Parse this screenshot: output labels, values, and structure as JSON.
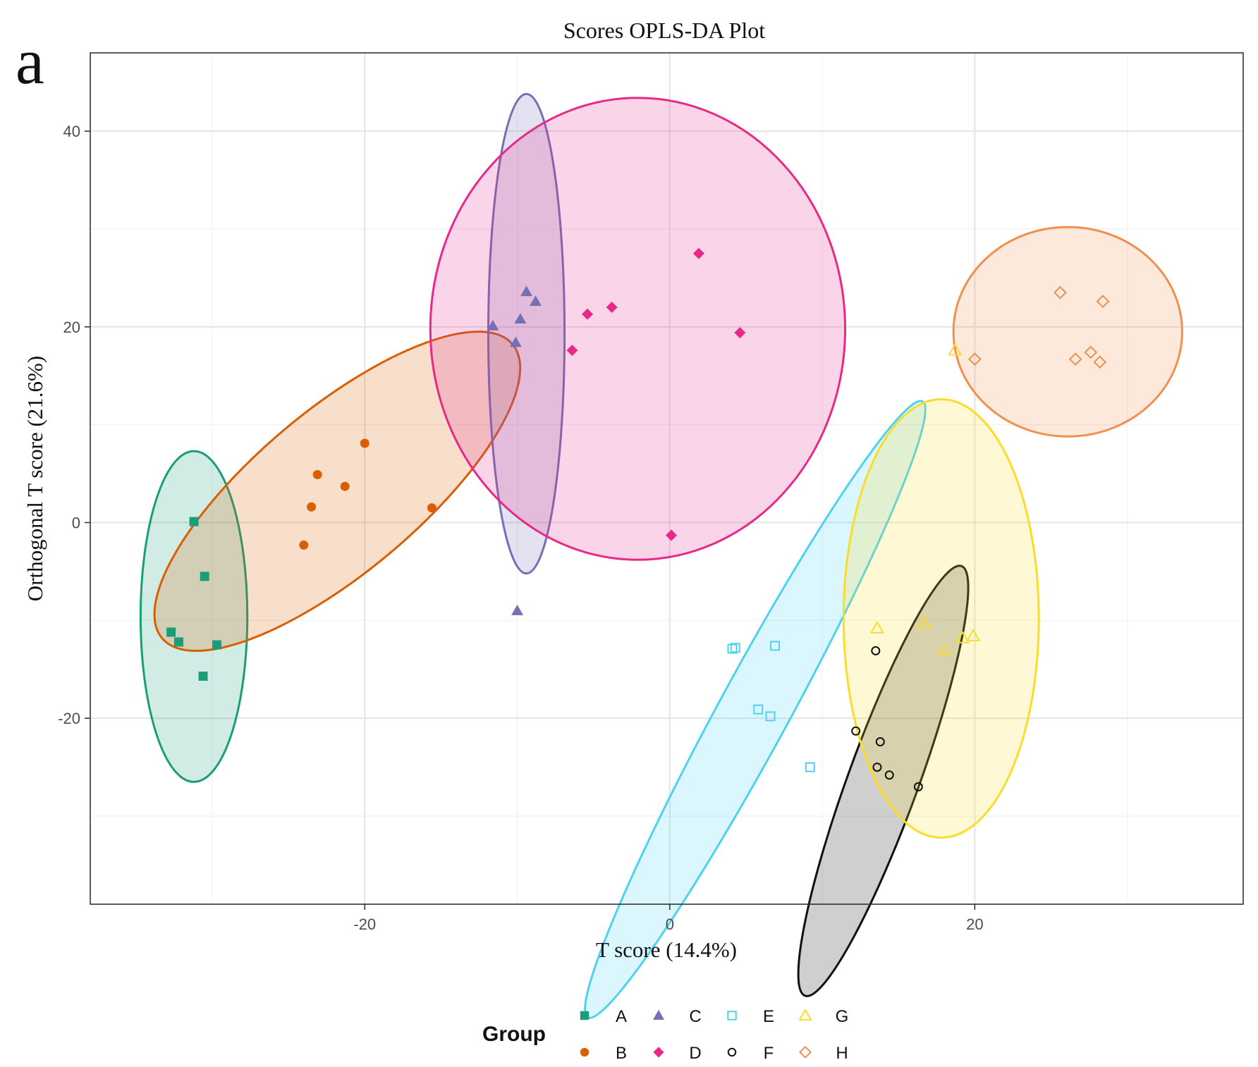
{
  "panel_label": "a",
  "chart_data": {
    "type": "scatter",
    "title": "Scores OPLS-DA Plot",
    "xlabel": "T score (14.4%)",
    "ylabel": "Orthogonal T score (21.6%)",
    "xlim": [
      -38,
      37.6
    ],
    "ylim": [
      -39,
      48
    ],
    "x_ticks": [
      -20,
      0,
      20
    ],
    "y_ticks": [
      -20,
      0,
      20,
      40
    ],
    "x_tick_labels": [
      "-20",
      "0",
      "20"
    ],
    "y_tick_labels": [
      "-20",
      "0",
      "20",
      "40"
    ],
    "x_minor_grid": [
      -30,
      -10,
      10,
      30
    ],
    "y_minor_grid": [
      -30,
      -10,
      10,
      30
    ],
    "grid": true,
    "legend_title": "Group",
    "legend_position": "bottom",
    "series": [
      {
        "name": "A",
        "marker": "filled-square",
        "color": "#1b9e77",
        "ellipse": {
          "cx": -31.2,
          "cy": -9.6,
          "rx": 3.5,
          "ry": 16.9,
          "angle": 0
        },
        "points": [
          [
            -31.2,
            0.1
          ],
          [
            -30.5,
            -5.5
          ],
          [
            -32.7,
            -11.2
          ],
          [
            -32.2,
            -12.2
          ],
          [
            -29.7,
            -12.5
          ],
          [
            -30.6,
            -15.7
          ]
        ]
      },
      {
        "name": "B",
        "marker": "filled-circle",
        "color": "#d95f02",
        "ellipse": {
          "cx": -21.8,
          "cy": 3.2,
          "rx": 15.0,
          "ry": 8.3,
          "angle": 40
        },
        "points": [
          [
            -20.0,
            8.1
          ],
          [
            -23.1,
            4.9
          ],
          [
            -21.3,
            3.7
          ],
          [
            -23.5,
            1.6
          ],
          [
            -15.6,
            1.5
          ],
          [
            -24.0,
            -2.3
          ]
        ]
      },
      {
        "name": "C",
        "marker": "filled-triangle",
        "color": "#7570b3",
        "ellipse": {
          "cx": -9.4,
          "cy": 19.3,
          "rx": 2.5,
          "ry": 24.5,
          "angle": 0
        },
        "points": [
          [
            -9.4,
            23.6
          ],
          [
            -8.8,
            22.6
          ],
          [
            -11.6,
            20.1
          ],
          [
            -9.8,
            20.8
          ],
          [
            -10.1,
            18.4
          ],
          [
            -10.0,
            -9.0
          ]
        ]
      },
      {
        "name": "D",
        "marker": "filled-diamond",
        "color": "#e7298a",
        "ellipse": {
          "cx": -2.1,
          "cy": 19.8,
          "rx": 13.6,
          "ry": 23.6,
          "angle": 0
        },
        "points": [
          [
            1.9,
            27.5
          ],
          [
            -5.4,
            21.3
          ],
          [
            -3.8,
            22.0
          ],
          [
            4.6,
            19.4
          ],
          [
            -6.4,
            17.6
          ],
          [
            0.1,
            -1.3
          ]
        ]
      },
      {
        "name": "E",
        "marker": "open-square",
        "color": "#4dd3f0",
        "ellipse": {
          "cx": 5.6,
          "cy": -19.1,
          "rx": 23.0,
          "ry": 3.6,
          "angle": 61.5
        },
        "points": [
          [
            4.3,
            -12.8
          ],
          [
            4.1,
            -12.9
          ],
          [
            6.9,
            -12.6
          ],
          [
            5.8,
            -19.1
          ],
          [
            6.6,
            -19.8
          ],
          [
            9.2,
            -25.0
          ]
        ]
      },
      {
        "name": "F",
        "marker": "open-circle",
        "color": "#111111",
        "ellipse": {
          "cx": 14.0,
          "cy": -26.4,
          "rx": 15.0,
          "ry": 3.6,
          "angle": 70
        },
        "points": [
          [
            13.5,
            -13.1
          ],
          [
            12.2,
            -21.3
          ],
          [
            13.8,
            -22.4
          ],
          [
            13.6,
            -25.0
          ],
          [
            14.4,
            -25.8
          ],
          [
            16.3,
            -27.0
          ]
        ]
      },
      {
        "name": "G",
        "marker": "open-triangle",
        "color": "#fadd2a",
        "ellipse": {
          "cx": 17.8,
          "cy": -9.8,
          "rx": 6.4,
          "ry": 22.4,
          "angle": 0
        },
        "points": [
          [
            18.7,
            17.6
          ],
          [
            13.6,
            -10.8
          ],
          [
            16.7,
            -10.3
          ],
          [
            18.0,
            -13.1
          ],
          [
            19.2,
            -11.8
          ],
          [
            19.9,
            -11.6
          ]
        ]
      },
      {
        "name": "H",
        "marker": "open-diamond",
        "color": "#f0904e",
        "ellipse": {
          "cx": 26.1,
          "cy": 19.5,
          "rx": 7.5,
          "ry": 10.7,
          "angle": 0
        },
        "points": [
          [
            25.6,
            23.5
          ],
          [
            28.4,
            22.6
          ],
          [
            27.6,
            17.4
          ],
          [
            26.6,
            16.7
          ],
          [
            28.2,
            16.4
          ],
          [
            20.0,
            16.7
          ]
        ]
      }
    ]
  }
}
